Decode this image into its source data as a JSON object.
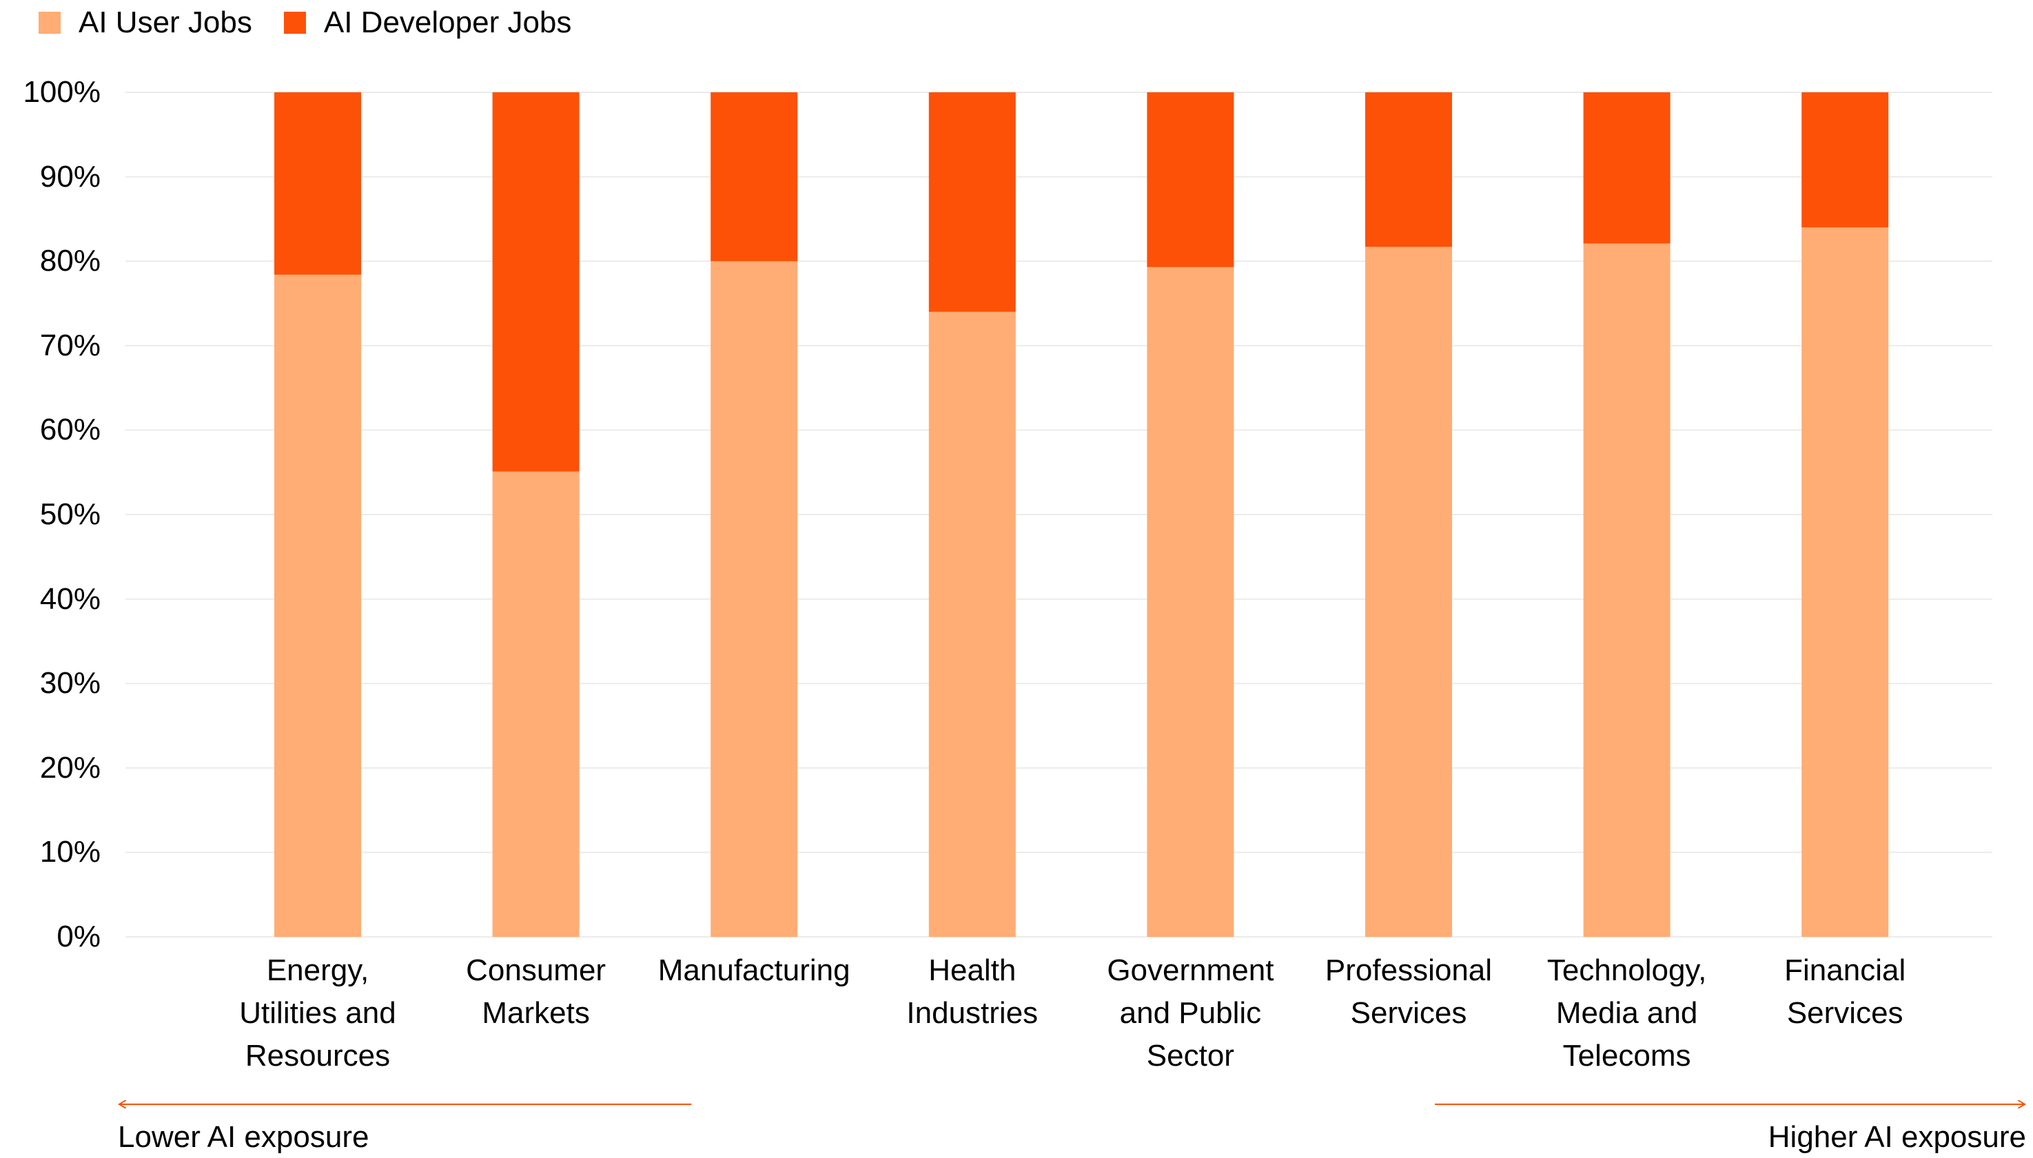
{
  "chart_data": {
    "type": "stacked_bar",
    "categories": [
      "Energy,\nUtilities and\nResources",
      "Consumer\nMarkets",
      "Manufacturing",
      "Health\nIndustries",
      "Government\nand Public\nSector",
      "Professional\nServices",
      "Technology,\nMedia and\nTelecoms",
      "Financial\nServices"
    ],
    "series": [
      {
        "name": "AI User Jobs",
        "color": "#ffad74",
        "values": [
          78.4,
          55.1,
          80,
          74,
          79.3,
          81.7,
          82.1,
          84
        ]
      },
      {
        "name": "AI Developer Jobs",
        "color": "#fd5108",
        "values": [
          21.6,
          44.9,
          20,
          26,
          20.7,
          18.3,
          17.9,
          16
        ]
      }
    ],
    "ylim": [
      0,
      100
    ],
    "yticks": [
      {
        "value": 0,
        "label": "0%"
      },
      {
        "value": 10,
        "label": "10%"
      },
      {
        "value": 20,
        "label": "20%"
      },
      {
        "value": 30,
        "label": "30%"
      },
      {
        "value": 40,
        "label": "40%"
      },
      {
        "value": 50,
        "label": "50%"
      },
      {
        "value": 60,
        "label": "60%"
      },
      {
        "value": 70,
        "label": "70%"
      },
      {
        "value": 80,
        "label": "80%"
      },
      {
        "value": 90,
        "label": "90%"
      },
      {
        "value": 100,
        "label": "100%"
      }
    ],
    "grid": true,
    "annotations": [
      "Lower AI exposure",
      "Higher AI exposure"
    ]
  }
}
